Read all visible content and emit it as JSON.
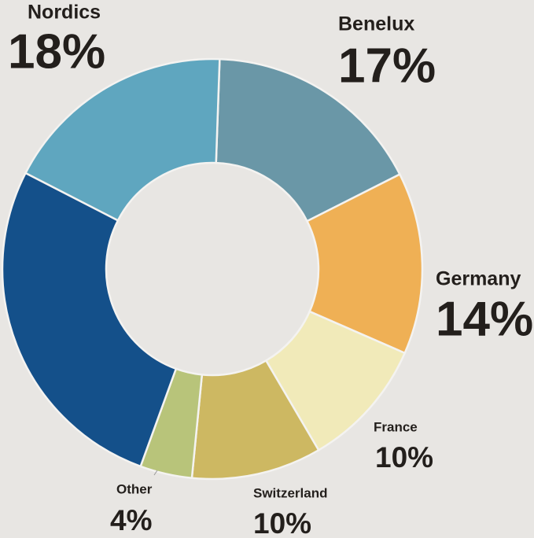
{
  "chart_data": {
    "type": "donut",
    "categories": [
      "Benelux",
      "Germany",
      "France",
      "Switzerland",
      "Other",
      null,
      "Nordics"
    ],
    "values": [
      17,
      14,
      10,
      10,
      4,
      27,
      18
    ],
    "value_labels": [
      "17%",
      "14%",
      "10%",
      "10%",
      "4%",
      null,
      "18%"
    ],
    "colors": [
      "#6a97a7",
      "#efb055",
      "#f1eab9",
      "#cdb862",
      "#b8c47a",
      "#14508a",
      "#5fa6bf"
    ]
  }
}
